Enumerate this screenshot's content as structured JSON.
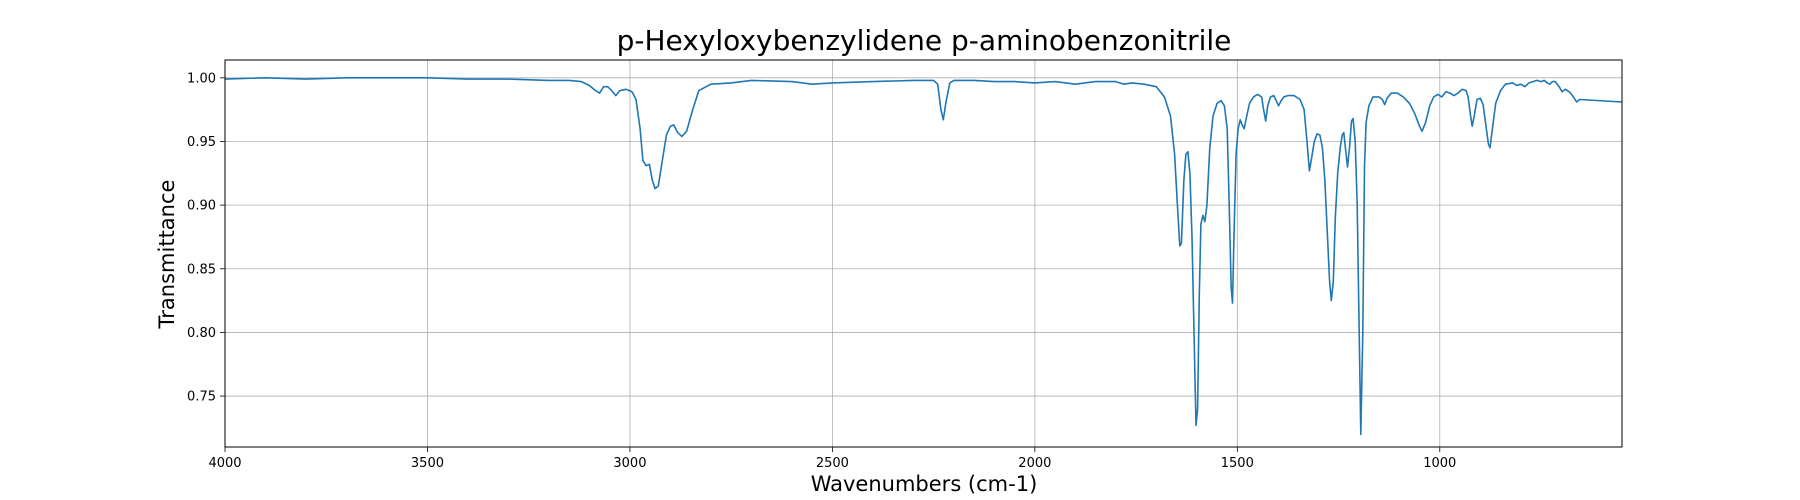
{
  "chart_data": {
    "type": "line",
    "title": "p-Hexyloxybenzylidene p-aminobenzonitrile",
    "xlabel": "Wavenumbers (cm-1)",
    "ylabel": "Transmittance",
    "xlim": [
      4000,
      550
    ],
    "ylim": [
      0.71,
      1.014
    ],
    "x_axis_reversed": true,
    "grid": true,
    "x_ticks": [
      4000,
      3500,
      3000,
      2500,
      2000,
      1500,
      1000
    ],
    "x_tick_labels": [
      "4000",
      "3500",
      "3000",
      "2500",
      "2000",
      "1500",
      "1000"
    ],
    "y_ticks": [
      0.75,
      0.8,
      0.85,
      0.9,
      0.95,
      1.0
    ],
    "y_tick_labels": [
      "0.75",
      "0.80",
      "0.85",
      "0.90",
      "0.95",
      "1.00"
    ],
    "series": [
      {
        "color": "#1f77b4",
        "points": [
          [
            4000,
            0.999
          ],
          [
            3900,
            1.0
          ],
          [
            3800,
            0.999
          ],
          [
            3700,
            1.0
          ],
          [
            3600,
            1.0
          ],
          [
            3500,
            1.0
          ],
          [
            3400,
            0.999
          ],
          [
            3300,
            0.999
          ],
          [
            3200,
            0.998
          ],
          [
            3150,
            0.998
          ],
          [
            3120,
            0.997
          ],
          [
            3100,
            0.994
          ],
          [
            3085,
            0.99
          ],
          [
            3075,
            0.988
          ],
          [
            3065,
            0.993
          ],
          [
            3055,
            0.993
          ],
          [
            3045,
            0.99
          ],
          [
            3035,
            0.986
          ],
          [
            3025,
            0.99
          ],
          [
            3010,
            0.991
          ],
          [
            2995,
            0.989
          ],
          [
            2985,
            0.983
          ],
          [
            2975,
            0.96
          ],
          [
            2968,
            0.935
          ],
          [
            2960,
            0.931
          ],
          [
            2952,
            0.932
          ],
          [
            2945,
            0.92
          ],
          [
            2938,
            0.913
          ],
          [
            2930,
            0.915
          ],
          [
            2920,
            0.935
          ],
          [
            2910,
            0.955
          ],
          [
            2900,
            0.962
          ],
          [
            2892,
            0.963
          ],
          [
            2882,
            0.957
          ],
          [
            2872,
            0.954
          ],
          [
            2860,
            0.958
          ],
          [
            2845,
            0.975
          ],
          [
            2830,
            0.99
          ],
          [
            2800,
            0.995
          ],
          [
            2750,
            0.996
          ],
          [
            2700,
            0.998
          ],
          [
            2600,
            0.997
          ],
          [
            2550,
            0.995
          ],
          [
            2500,
            0.996
          ],
          [
            2400,
            0.997
          ],
          [
            2300,
            0.998
          ],
          [
            2250,
            0.998
          ],
          [
            2240,
            0.995
          ],
          [
            2232,
            0.975
          ],
          [
            2226,
            0.967
          ],
          [
            2220,
            0.98
          ],
          [
            2210,
            0.996
          ],
          [
            2200,
            0.998
          ],
          [
            2150,
            0.998
          ],
          [
            2100,
            0.997
          ],
          [
            2050,
            0.997
          ],
          [
            2000,
            0.996
          ],
          [
            1950,
            0.997
          ],
          [
            1900,
            0.995
          ],
          [
            1850,
            0.997
          ],
          [
            1800,
            0.997
          ],
          [
            1780,
            0.995
          ],
          [
            1760,
            0.996
          ],
          [
            1730,
            0.995
          ],
          [
            1700,
            0.993
          ],
          [
            1680,
            0.985
          ],
          [
            1665,
            0.97
          ],
          [
            1655,
            0.94
          ],
          [
            1648,
            0.9
          ],
          [
            1642,
            0.868
          ],
          [
            1638,
            0.87
          ],
          [
            1632,
            0.92
          ],
          [
            1627,
            0.94
          ],
          [
            1622,
            0.942
          ],
          [
            1617,
            0.925
          ],
          [
            1612,
            0.875
          ],
          [
            1607,
            0.8
          ],
          [
            1602,
            0.727
          ],
          [
            1598,
            0.74
          ],
          [
            1594,
            0.83
          ],
          [
            1590,
            0.885
          ],
          [
            1585,
            0.892
          ],
          [
            1580,
            0.887
          ],
          [
            1575,
            0.9
          ],
          [
            1568,
            0.945
          ],
          [
            1560,
            0.97
          ],
          [
            1550,
            0.98
          ],
          [
            1540,
            0.982
          ],
          [
            1532,
            0.978
          ],
          [
            1525,
            0.96
          ],
          [
            1520,
            0.9
          ],
          [
            1515,
            0.835
          ],
          [
            1512,
            0.823
          ],
          [
            1508,
            0.88
          ],
          [
            1503,
            0.94
          ],
          [
            1498,
            0.96
          ],
          [
            1493,
            0.967
          ],
          [
            1488,
            0.963
          ],
          [
            1483,
            0.96
          ],
          [
            1478,
            0.968
          ],
          [
            1470,
            0.98
          ],
          [
            1460,
            0.985
          ],
          [
            1450,
            0.987
          ],
          [
            1440,
            0.985
          ],
          [
            1435,
            0.975
          ],
          [
            1430,
            0.966
          ],
          [
            1425,
            0.978
          ],
          [
            1418,
            0.985
          ],
          [
            1410,
            0.986
          ],
          [
            1404,
            0.982
          ],
          [
            1398,
            0.978
          ],
          [
            1392,
            0.982
          ],
          [
            1385,
            0.985
          ],
          [
            1375,
            0.986
          ],
          [
            1360,
            0.986
          ],
          [
            1345,
            0.983
          ],
          [
            1335,
            0.975
          ],
          [
            1328,
            0.95
          ],
          [
            1322,
            0.927
          ],
          [
            1316,
            0.938
          ],
          [
            1310,
            0.95
          ],
          [
            1303,
            0.956
          ],
          [
            1296,
            0.955
          ],
          [
            1290,
            0.945
          ],
          [
            1284,
            0.92
          ],
          [
            1278,
            0.88
          ],
          [
            1272,
            0.84
          ],
          [
            1268,
            0.825
          ],
          [
            1263,
            0.84
          ],
          [
            1258,
            0.89
          ],
          [
            1252,
            0.925
          ],
          [
            1246,
            0.945
          ],
          [
            1241,
            0.955
          ],
          [
            1237,
            0.957
          ],
          [
            1233,
            0.945
          ],
          [
            1228,
            0.93
          ],
          [
            1223,
            0.945
          ],
          [
            1218,
            0.966
          ],
          [
            1214,
            0.968
          ],
          [
            1209,
            0.95
          ],
          [
            1204,
            0.9
          ],
          [
            1199,
            0.8
          ],
          [
            1195,
            0.72
          ],
          [
            1190,
            0.8
          ],
          [
            1186,
            0.93
          ],
          [
            1182,
            0.965
          ],
          [
            1175,
            0.978
          ],
          [
            1165,
            0.985
          ],
          [
            1150,
            0.985
          ],
          [
            1142,
            0.983
          ],
          [
            1136,
            0.979
          ],
          [
            1130,
            0.984
          ],
          [
            1120,
            0.988
          ],
          [
            1105,
            0.988
          ],
          [
            1090,
            0.985
          ],
          [
            1075,
            0.98
          ],
          [
            1062,
            0.972
          ],
          [
            1050,
            0.962
          ],
          [
            1044,
            0.958
          ],
          [
            1035,
            0.965
          ],
          [
            1025,
            0.978
          ],
          [
            1015,
            0.985
          ],
          [
            1005,
            0.987
          ],
          [
            995,
            0.985
          ],
          [
            985,
            0.989
          ],
          [
            975,
            0.988
          ],
          [
            965,
            0.986
          ],
          [
            955,
            0.988
          ],
          [
            945,
            0.991
          ],
          [
            935,
            0.99
          ],
          [
            930,
            0.985
          ],
          [
            924,
            0.97
          ],
          [
            920,
            0.962
          ],
          [
            915,
            0.97
          ],
          [
            908,
            0.983
          ],
          [
            900,
            0.984
          ],
          [
            893,
            0.979
          ],
          [
            887,
            0.965
          ],
          [
            880,
            0.948
          ],
          [
            876,
            0.945
          ],
          [
            870,
            0.96
          ],
          [
            862,
            0.98
          ],
          [
            850,
            0.99
          ],
          [
            838,
            0.995
          ],
          [
            820,
            0.996
          ],
          [
            810,
            0.994
          ],
          [
            800,
            0.995
          ],
          [
            790,
            0.993
          ],
          [
            780,
            0.996
          ],
          [
            770,
            0.997
          ],
          [
            760,
            0.998
          ],
          [
            750,
            0.997
          ],
          [
            742,
            0.998
          ],
          [
            735,
            0.996
          ],
          [
            728,
            0.995
          ],
          [
            722,
            0.997
          ],
          [
            715,
            0.997
          ],
          [
            705,
            0.993
          ],
          [
            698,
            0.989
          ],
          [
            690,
            0.991
          ],
          [
            680,
            0.989
          ],
          [
            670,
            0.985
          ],
          [
            662,
            0.981
          ],
          [
            655,
            0.983
          ],
          [
            550,
            0.981
          ]
        ]
      }
    ]
  }
}
